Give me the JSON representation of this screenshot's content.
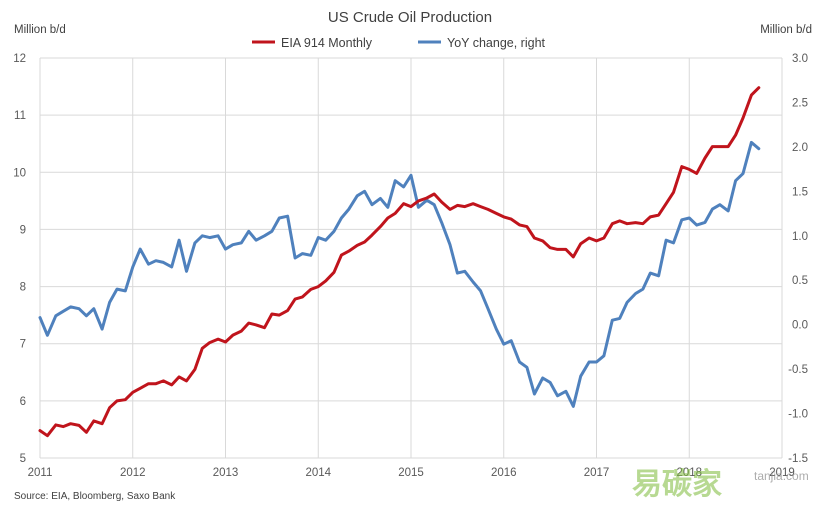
{
  "chart_data": {
    "type": "line",
    "title": "US Crude Oil Production",
    "ylabel_left": "Million b/d",
    "ylabel_right": "Million b/d",
    "ylim_left": [
      5,
      12
    ],
    "ylim_right": [
      -1.5,
      3.0
    ],
    "yticks_left": [
      "5",
      "6",
      "7",
      "8",
      "9",
      "10",
      "11",
      "12"
    ],
    "yticks_right": [
      "-1.5",
      "-1.0",
      "-0.5",
      "0.0",
      "0.5",
      "1.0",
      "1.5",
      "2.0",
      "2.5",
      "3.0"
    ],
    "xticks": [
      "2011",
      "2012",
      "2013",
      "2014",
      "2015",
      "2016",
      "2017",
      "2018",
      "2019"
    ],
    "grid": true,
    "legend_position": "top-center",
    "source": "Source: EIA, Bloomberg, Saxo Bank",
    "series": [
      {
        "name": "EIA 914 Monthly",
        "axis": "left",
        "color": "#c0141c",
        "points": [
          [
            2011.0,
            5.48
          ],
          [
            2011.08,
            5.39
          ],
          [
            2011.17,
            5.58
          ],
          [
            2011.25,
            5.55
          ],
          [
            2011.33,
            5.6
          ],
          [
            2011.42,
            5.57
          ],
          [
            2011.5,
            5.45
          ],
          [
            2011.58,
            5.65
          ],
          [
            2011.67,
            5.6
          ],
          [
            2011.75,
            5.88
          ],
          [
            2011.83,
            6.0
          ],
          [
            2011.92,
            6.02
          ],
          [
            2012.0,
            6.15
          ],
          [
            2012.08,
            6.22
          ],
          [
            2012.17,
            6.3
          ],
          [
            2012.25,
            6.3
          ],
          [
            2012.33,
            6.35
          ],
          [
            2012.42,
            6.28
          ],
          [
            2012.5,
            6.42
          ],
          [
            2012.58,
            6.35
          ],
          [
            2012.67,
            6.55
          ],
          [
            2012.75,
            6.92
          ],
          [
            2012.83,
            7.02
          ],
          [
            2012.92,
            7.08
          ],
          [
            2013.0,
            7.03
          ],
          [
            2013.08,
            7.15
          ],
          [
            2013.17,
            7.22
          ],
          [
            2013.25,
            7.36
          ],
          [
            2013.33,
            7.33
          ],
          [
            2013.42,
            7.28
          ],
          [
            2013.5,
            7.52
          ],
          [
            2013.58,
            7.5
          ],
          [
            2013.67,
            7.58
          ],
          [
            2013.75,
            7.78
          ],
          [
            2013.83,
            7.82
          ],
          [
            2013.92,
            7.95
          ],
          [
            2014.0,
            8.0
          ],
          [
            2014.08,
            8.1
          ],
          [
            2014.17,
            8.25
          ],
          [
            2014.25,
            8.55
          ],
          [
            2014.33,
            8.62
          ],
          [
            2014.42,
            8.72
          ],
          [
            2014.5,
            8.78
          ],
          [
            2014.58,
            8.9
          ],
          [
            2014.67,
            9.05
          ],
          [
            2014.75,
            9.2
          ],
          [
            2014.83,
            9.28
          ],
          [
            2014.92,
            9.45
          ],
          [
            2015.0,
            9.4
          ],
          [
            2015.08,
            9.5
          ],
          [
            2015.17,
            9.55
          ],
          [
            2015.25,
            9.62
          ],
          [
            2015.33,
            9.48
          ],
          [
            2015.42,
            9.35
          ],
          [
            2015.5,
            9.42
          ],
          [
            2015.58,
            9.4
          ],
          [
            2015.67,
            9.45
          ],
          [
            2015.75,
            9.4
          ],
          [
            2015.83,
            9.35
          ],
          [
            2015.92,
            9.28
          ],
          [
            2016.0,
            9.22
          ],
          [
            2016.08,
            9.18
          ],
          [
            2016.17,
            9.08
          ],
          [
            2016.25,
            9.05
          ],
          [
            2016.33,
            8.85
          ],
          [
            2016.42,
            8.8
          ],
          [
            2016.5,
            8.68
          ],
          [
            2016.58,
            8.65
          ],
          [
            2016.67,
            8.65
          ],
          [
            2016.75,
            8.52
          ],
          [
            2016.83,
            8.75
          ],
          [
            2016.92,
            8.85
          ],
          [
            2017.0,
            8.8
          ],
          [
            2017.08,
            8.85
          ],
          [
            2017.17,
            9.1
          ],
          [
            2017.25,
            9.15
          ],
          [
            2017.33,
            9.1
          ],
          [
            2017.42,
            9.12
          ],
          [
            2017.5,
            9.1
          ],
          [
            2017.58,
            9.22
          ],
          [
            2017.67,
            9.25
          ],
          [
            2017.75,
            9.45
          ],
          [
            2017.83,
            9.65
          ],
          [
            2017.92,
            10.1
          ],
          [
            2018.0,
            10.05
          ],
          [
            2018.08,
            9.98
          ],
          [
            2018.17,
            10.25
          ],
          [
            2018.25,
            10.45
          ],
          [
            2018.33,
            10.45
          ],
          [
            2018.42,
            10.45
          ],
          [
            2018.5,
            10.65
          ],
          [
            2018.58,
            10.95
          ],
          [
            2018.67,
            11.35
          ],
          [
            2018.75,
            11.48
          ]
        ]
      },
      {
        "name": "YoY change, right",
        "axis": "right",
        "color": "#4f81bd",
        "points": [
          [
            2011.0,
            0.08
          ],
          [
            2011.08,
            -0.12
          ],
          [
            2011.17,
            0.1
          ],
          [
            2011.25,
            0.15
          ],
          [
            2011.33,
            0.2
          ],
          [
            2011.42,
            0.18
          ],
          [
            2011.5,
            0.1
          ],
          [
            2011.58,
            0.18
          ],
          [
            2011.67,
            -0.05
          ],
          [
            2011.75,
            0.25
          ],
          [
            2011.83,
            0.4
          ],
          [
            2011.92,
            0.38
          ],
          [
            2012.0,
            0.65
          ],
          [
            2012.08,
            0.85
          ],
          [
            2012.17,
            0.68
          ],
          [
            2012.25,
            0.72
          ],
          [
            2012.33,
            0.7
          ],
          [
            2012.42,
            0.65
          ],
          [
            2012.5,
            0.95
          ],
          [
            2012.58,
            0.6
          ],
          [
            2012.67,
            0.92
          ],
          [
            2012.75,
            1.0
          ],
          [
            2012.83,
            0.98
          ],
          [
            2012.92,
            1.0
          ],
          [
            2013.0,
            0.85
          ],
          [
            2013.08,
            0.9
          ],
          [
            2013.17,
            0.92
          ],
          [
            2013.25,
            1.05
          ],
          [
            2013.33,
            0.95
          ],
          [
            2013.42,
            1.0
          ],
          [
            2013.5,
            1.05
          ],
          [
            2013.58,
            1.2
          ],
          [
            2013.67,
            1.22
          ],
          [
            2013.75,
            0.75
          ],
          [
            2013.83,
            0.8
          ],
          [
            2013.92,
            0.78
          ],
          [
            2014.0,
            0.98
          ],
          [
            2014.08,
            0.95
          ],
          [
            2014.17,
            1.05
          ],
          [
            2014.25,
            1.2
          ],
          [
            2014.33,
            1.3
          ],
          [
            2014.42,
            1.45
          ],
          [
            2014.5,
            1.5
          ],
          [
            2014.58,
            1.35
          ],
          [
            2014.67,
            1.42
          ],
          [
            2014.75,
            1.32
          ],
          [
            2014.83,
            1.62
          ],
          [
            2014.92,
            1.55
          ],
          [
            2015.0,
            1.68
          ],
          [
            2015.08,
            1.32
          ],
          [
            2015.17,
            1.4
          ],
          [
            2015.25,
            1.35
          ],
          [
            2015.33,
            1.15
          ],
          [
            2015.42,
            0.9
          ],
          [
            2015.5,
            0.58
          ],
          [
            2015.58,
            0.6
          ],
          [
            2015.67,
            0.48
          ],
          [
            2015.75,
            0.38
          ],
          [
            2015.83,
            0.18
          ],
          [
            2015.92,
            -0.05
          ],
          [
            2016.0,
            -0.22
          ],
          [
            2016.08,
            -0.18
          ],
          [
            2016.17,
            -0.42
          ],
          [
            2016.25,
            -0.48
          ],
          [
            2016.33,
            -0.78
          ],
          [
            2016.42,
            -0.6
          ],
          [
            2016.5,
            -0.65
          ],
          [
            2016.58,
            -0.8
          ],
          [
            2016.67,
            -0.75
          ],
          [
            2016.75,
            -0.92
          ],
          [
            2016.83,
            -0.58
          ],
          [
            2016.92,
            -0.42
          ],
          [
            2017.0,
            -0.42
          ],
          [
            2017.08,
            -0.35
          ],
          [
            2017.17,
            0.05
          ],
          [
            2017.25,
            0.07
          ],
          [
            2017.33,
            0.25
          ],
          [
            2017.42,
            0.35
          ],
          [
            2017.5,
            0.4
          ],
          [
            2017.58,
            0.58
          ],
          [
            2017.67,
            0.55
          ],
          [
            2017.75,
            0.95
          ],
          [
            2017.83,
            0.92
          ],
          [
            2017.92,
            1.18
          ],
          [
            2018.0,
            1.2
          ],
          [
            2018.08,
            1.12
          ],
          [
            2018.17,
            1.15
          ],
          [
            2018.25,
            1.3
          ],
          [
            2018.33,
            1.35
          ],
          [
            2018.42,
            1.28
          ],
          [
            2018.5,
            1.62
          ],
          [
            2018.58,
            1.7
          ],
          [
            2018.67,
            2.05
          ],
          [
            2018.75,
            1.98
          ]
        ]
      }
    ]
  },
  "watermark": {
    "brand": "易碳家",
    "domain": "tanjia.com"
  }
}
